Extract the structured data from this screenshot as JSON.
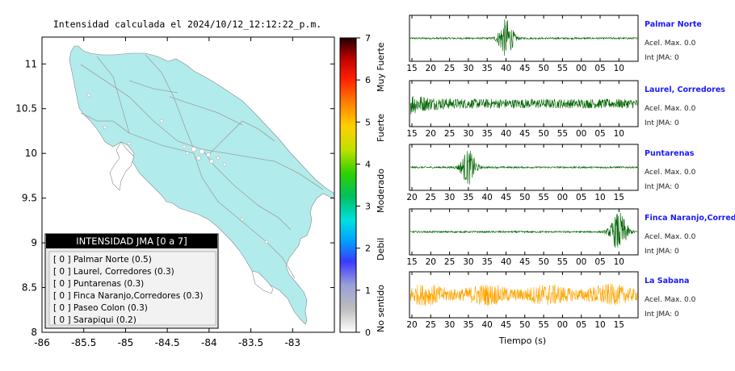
{
  "map": {
    "title": "Intensidad calculada el 2024/10/12_12:12:22_p.m.",
    "x_ticks": [
      "-86",
      "-85.5",
      "-85",
      "-84.5",
      "-84",
      "-83.5",
      "-83"
    ],
    "y_ticks": [
      "8",
      "8.5",
      "9",
      "9.5",
      "10",
      "10.5",
      "11"
    ],
    "xlim": [
      -86,
      -82.5
    ],
    "ylim": [
      8,
      11.3
    ],
    "land_color": "#b2ebeb",
    "legend": {
      "title": "INTENSIDAD JMA [0 a 7]",
      "items": [
        "[ 0 ]  Palmar Norte (0.5)",
        "[ 0 ]  Laurel, Corredores (0.3)",
        "[ 0 ]  Puntarenas (0.3)",
        "[ 0 ]  Finca Naranjo,Corredores (0.3)",
        "[ 0 ]  Paseo Colon (0.3)",
        "[ 0 ]  Sarapiqui (0.2)"
      ]
    }
  },
  "colorbar": {
    "ticks": [
      "0",
      "1",
      "2",
      "3",
      "4",
      "5",
      "6",
      "7"
    ],
    "labels": [
      "No sentido",
      "Debil",
      "Moderado",
      "Fuerte",
      "Muy Fuerte"
    ]
  },
  "chart_data": [
    {
      "type": "line",
      "title": "Palmar Norte",
      "annotations": [
        "Acel. Max. 0.0",
        "Int JMA: 0"
      ],
      "tick_labels": [
        "15",
        "20",
        "25",
        "30",
        "35",
        "40",
        "45",
        "50",
        "55",
        "00",
        "05",
        "10"
      ],
      "color": "#006400",
      "burst": {
        "center_time_label": "40",
        "relative_amplitude": 0.9
      }
    },
    {
      "type": "line",
      "title": "Laurel, Corredores",
      "annotations": [
        "Acel. Max. 0.0",
        "Int JMA: 0"
      ],
      "tick_labels": [
        "15",
        "20",
        "25",
        "30",
        "35",
        "40",
        "45",
        "50",
        "55",
        "00",
        "05",
        "10"
      ],
      "color": "#006400"
    },
    {
      "type": "line",
      "title": "Puntarenas",
      "annotations": [
        "Acel. Max. 0.0",
        "Int JMA: 0"
      ],
      "tick_labels": [
        "20",
        "25",
        "30",
        "35",
        "40",
        "45",
        "50",
        "55",
        "00",
        "05",
        "10",
        "15"
      ],
      "color": "#006400",
      "burst": {
        "center_time_label": "35",
        "relative_amplitude": 0.8
      }
    },
    {
      "type": "line",
      "title": "Finca Naranjo,Corredores",
      "annotations": [
        "Acel. Max. 0.0",
        "Int JMA: 0"
      ],
      "tick_labels": [
        "15",
        "20",
        "25",
        "30",
        "35",
        "40",
        "45",
        "50",
        "55",
        "00",
        "05",
        "10"
      ],
      "color": "#006400",
      "burst": {
        "center_time_label": "10",
        "relative_amplitude": 0.9
      }
    },
    {
      "type": "line",
      "title": "La Sabana",
      "annotations": [
        "Acel. Max. 0.0",
        "Int JMA: 0"
      ],
      "tick_labels": [
        "20",
        "25",
        "30",
        "35",
        "40",
        "45",
        "50",
        "55",
        "00",
        "05",
        "10",
        "15"
      ],
      "color": "#ffa500",
      "xlabel": "Tiempo (s)"
    }
  ]
}
